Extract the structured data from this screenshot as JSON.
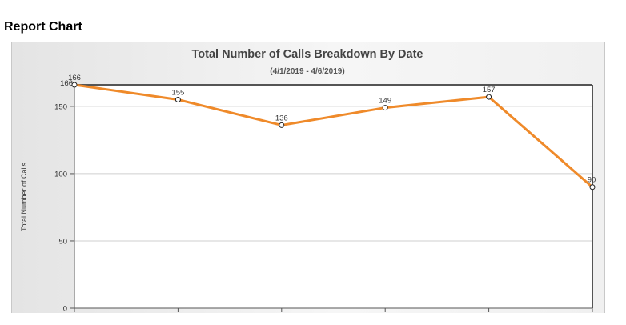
{
  "page": {
    "heading": "Report Chart"
  },
  "colors": {
    "series": "#ef8a2a",
    "axis": "#555555",
    "grid": "#cfcfcf",
    "plot_background": "#ffffff"
  },
  "chart_data": {
    "type": "line",
    "title": "Total Number of Calls Breakdown By Date",
    "subtitle": "(4/1/2019 - 4/6/2019)",
    "xlabel": "",
    "ylabel": "Total Number of Calls",
    "ylim": [
      0,
      166
    ],
    "yticks": [
      0,
      50,
      100,
      150
    ],
    "ytick_labels": [
      "0",
      "50",
      "100",
      "150"
    ],
    "top_label": "166",
    "grid": true,
    "legend": "none",
    "series": [
      {
        "values": [
          166,
          155,
          136,
          149,
          157,
          90
        ]
      }
    ],
    "data_labels": [
      "166",
      "155",
      "136",
      "149",
      "157",
      "90"
    ]
  }
}
